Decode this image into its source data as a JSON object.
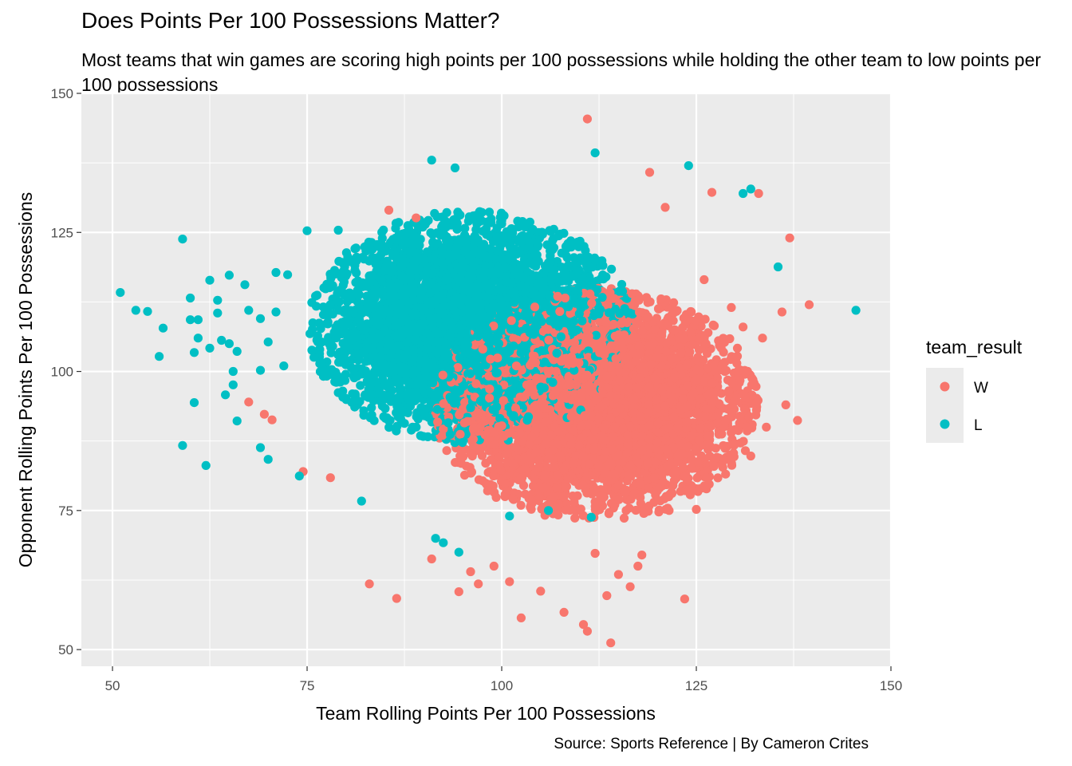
{
  "chart_data": {
    "type": "scatter",
    "title": "Does Points Per 100 Possessions Matter?",
    "subtitle": "Most teams that win games are scoring high points per 100 possessions while holding the other team to low points per 100 possessions",
    "xlabel": "Team Rolling Points Per 100 Possessions",
    "ylabel": "Opponent Rolling Points Per 100 Possessions",
    "caption": "Source: Sports Reference | By Cameron Crites",
    "xlim": [
      46,
      150
    ],
    "ylim": [
      47,
      150
    ],
    "x_ticks": [
      50,
      75,
      100,
      125,
      150
    ],
    "y_ticks": [
      50,
      75,
      100,
      125,
      150
    ],
    "grid": true,
    "legend": {
      "title": "team_result",
      "placement": "right"
    },
    "series": [
      {
        "name": "W",
        "color": "#F8766D",
        "cluster": {
          "center_x": 112,
          "center_y": 94,
          "sd_x": 9.5,
          "sd_y": 9.5,
          "count": 5200
        },
        "points": [
          [
            111,
            145.4
          ],
          [
            119,
            135.8
          ],
          [
            127,
            132.2
          ],
          [
            133,
            132
          ],
          [
            137,
            124
          ],
          [
            139.5,
            112
          ],
          [
            138,
            91.2
          ],
          [
            136.5,
            94
          ],
          [
            134,
            90
          ],
          [
            132,
            84.8
          ],
          [
            67.5,
            94.5
          ],
          [
            69.5,
            92.3
          ],
          [
            70.5,
            91.3
          ],
          [
            74.5,
            82
          ],
          [
            78,
            80.9
          ],
          [
            83,
            61.8
          ],
          [
            86.5,
            59.2
          ],
          [
            94.5,
            60.4
          ],
          [
            102.5,
            55.7
          ],
          [
            108,
            56.7
          ],
          [
            110.5,
            54.5
          ],
          [
            111,
            53.3
          ],
          [
            114,
            51.2
          ],
          [
            123.5,
            59.1
          ],
          [
            116.5,
            61.3
          ],
          [
            113.5,
            59.7
          ],
          [
            105,
            60.5
          ],
          [
            101,
            62.2
          ],
          [
            117.5,
            65
          ],
          [
            125,
            75.2
          ],
          [
            136,
            110.7
          ],
          [
            133.5,
            106
          ],
          [
            131,
            108
          ],
          [
            129.5,
            111.5
          ],
          [
            126,
            116.5
          ],
          [
            121,
            129.5
          ],
          [
            85.5,
            129
          ],
          [
            89,
            127.6
          ],
          [
            97,
            61.8
          ],
          [
            99,
            65
          ],
          [
            91,
            66.3
          ],
          [
            96,
            64
          ],
          [
            112,
            67.3
          ],
          [
            115,
            63.5
          ],
          [
            118,
            67
          ],
          [
            121.5,
            75
          ],
          [
            128.5,
            84
          ],
          [
            130,
            87
          ],
          [
            131.5,
            90
          ],
          [
            124,
            78.5
          ]
        ]
      },
      {
        "name": "L",
        "color": "#00BFC4",
        "cluster": {
          "center_x": 96,
          "center_y": 108,
          "sd_x": 9.5,
          "sd_y": 9.5,
          "count": 5200
        },
        "points": [
          [
            51,
            114.2
          ],
          [
            53,
            111
          ],
          [
            54.5,
            110.8
          ],
          [
            56,
            102.7
          ],
          [
            56.5,
            107.8
          ],
          [
            59,
            123.8
          ],
          [
            59,
            86.7
          ],
          [
            60,
            113.2
          ],
          [
            60,
            109.3
          ],
          [
            60.5,
            103.4
          ],
          [
            60.5,
            94.4
          ],
          [
            61,
            106
          ],
          [
            61,
            109.3
          ],
          [
            62,
            83.1
          ],
          [
            62.5,
            116.4
          ],
          [
            62.5,
            104.2
          ],
          [
            63.5,
            112.8
          ],
          [
            63.5,
            110.5
          ],
          [
            64,
            105.6
          ],
          [
            64.5,
            95.8
          ],
          [
            65,
            117.3
          ],
          [
            65,
            105
          ],
          [
            65.5,
            100
          ],
          [
            65.5,
            97.6
          ],
          [
            66,
            103.6
          ],
          [
            66,
            91.1
          ],
          [
            67,
            115.6
          ],
          [
            67.5,
            111
          ],
          [
            69,
            109.5
          ],
          [
            69,
            86.3
          ],
          [
            70,
            84.2
          ],
          [
            71,
            110.7
          ],
          [
            71,
            117.8
          ],
          [
            72.5,
            117.4
          ],
          [
            145.5,
            111
          ],
          [
            131,
            132
          ],
          [
            132,
            132.8
          ],
          [
            135.5,
            118.8
          ],
          [
            91,
            138
          ],
          [
            94,
            136.6
          ],
          [
            112,
            139.3
          ],
          [
            124,
            137
          ],
          [
            75,
            125.3
          ],
          [
            79,
            125.4
          ],
          [
            70,
            105.3
          ],
          [
            72,
            101
          ],
          [
            74,
            81.2
          ],
          [
            69,
            100.2
          ],
          [
            101,
            74
          ],
          [
            91.5,
            70
          ],
          [
            92.5,
            69.2
          ],
          [
            94.5,
            67.5
          ],
          [
            111.5,
            73.8
          ],
          [
            82,
            76.7
          ],
          [
            106,
            75
          ]
        ]
      }
    ]
  }
}
